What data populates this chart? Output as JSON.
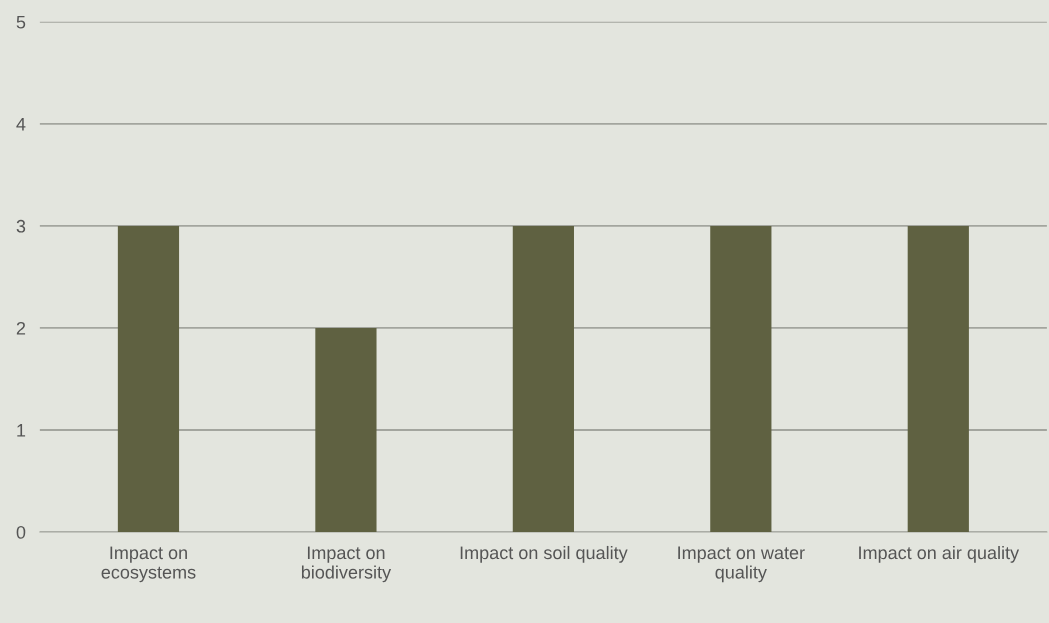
{
  "chart_data": {
    "type": "bar",
    "categories": [
      "Impact on\necosystems",
      "Impact on\nbiodiversity",
      "Impact on soil quality",
      "Impact on water\nquality",
      "Impact on air quality"
    ],
    "values": [
      3,
      2,
      3,
      3,
      3
    ],
    "color": "#5f6141",
    "ylim": [
      0,
      5
    ],
    "yticks": [
      0,
      1,
      2,
      3,
      4,
      5
    ],
    "grid": "y",
    "legend": false
  }
}
